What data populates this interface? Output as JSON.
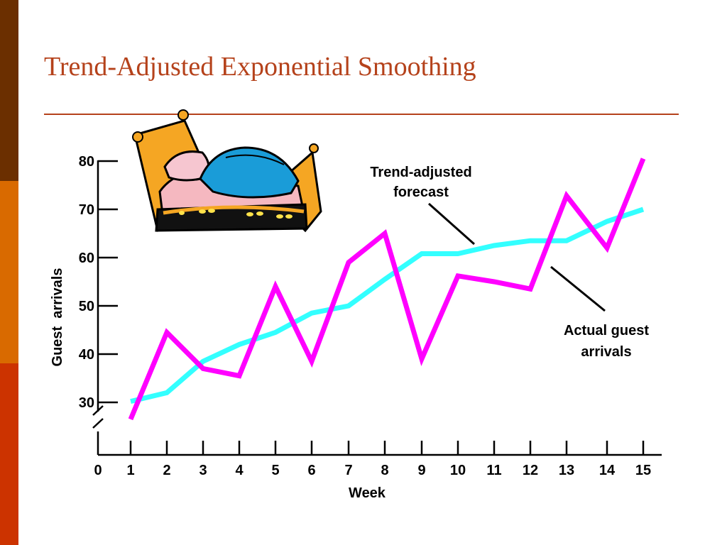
{
  "slide": {
    "title": "Trend-Adjusted Exponential Smoothing",
    "side_colors": [
      "#6b2f00",
      "#d96a00",
      "#cc3300"
    ],
    "rule_color": "#b5421b",
    "illustration": "bed-clipart"
  },
  "chart_data": {
    "type": "line",
    "xlabel": "Week",
    "ylabel": "Guest  arrivals",
    "x_ticks": [
      0,
      1,
      2,
      3,
      4,
      5,
      6,
      7,
      8,
      9,
      10,
      11,
      12,
      13,
      14,
      15
    ],
    "y_ticks": [
      30,
      40,
      50,
      60,
      70,
      80
    ],
    "ylim": [
      30,
      80
    ],
    "axis_break": true,
    "x": [
      1,
      2,
      3,
      4,
      5,
      6,
      7,
      8,
      9,
      10,
      11,
      12,
      13,
      14,
      15
    ],
    "series": [
      {
        "name": "Actual guest arrivals",
        "color": "#ff00ff",
        "values": [
          26.5,
          44.5,
          37,
          35.5,
          54,
          38.5,
          59,
          65,
          39,
          56.2,
          55,
          53.5,
          72.8,
          62,
          80.5
        ]
      },
      {
        "name": "Trend-adjusted forecast",
        "color": "#33ffff",
        "values": [
          30.2,
          32,
          38.5,
          42,
          44.5,
          48.5,
          50,
          55.5,
          60.8,
          60.8,
          62.5,
          63.5,
          63.5,
          67.5,
          70
        ]
      }
    ],
    "annotations": [
      {
        "text_lines": [
          "Trend-adjusted",
          "forecast"
        ]
      },
      {
        "text_lines": [
          "Actual guest",
          "arrivals"
        ]
      }
    ],
    "legend": "none",
    "grid": false
  }
}
